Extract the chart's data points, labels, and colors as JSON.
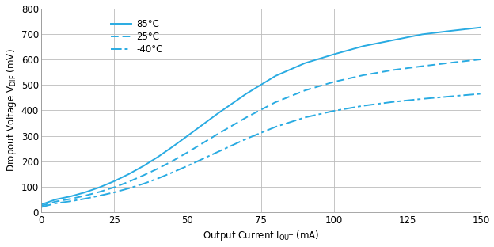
{
  "xlim": [
    0,
    150
  ],
  "ylim": [
    0,
    800
  ],
  "xticks": [
    0,
    25,
    50,
    75,
    100,
    125,
    150
  ],
  "yticks": [
    0,
    100,
    200,
    300,
    400,
    500,
    600,
    700,
    800
  ],
  "line_color": "#29ABE2",
  "grid_color": "#BBBBBB",
  "legend_labels": [
    "85°C",
    "25°C",
    "-40°C"
  ],
  "bg_color": "#FFFFFF",
  "curve_85": {
    "x": [
      0,
      5,
      10,
      15,
      20,
      25,
      30,
      35,
      40,
      45,
      50,
      60,
      70,
      80,
      90,
      100,
      110,
      120,
      130,
      140,
      150
    ],
    "y": [
      30,
      50,
      62,
      78,
      98,
      122,
      150,
      182,
      218,
      258,
      300,
      385,
      465,
      535,
      585,
      620,
      652,
      675,
      698,
      712,
      725
    ]
  },
  "curve_25": {
    "x": [
      0,
      5,
      10,
      15,
      20,
      25,
      30,
      35,
      40,
      45,
      50,
      60,
      70,
      80,
      90,
      100,
      110,
      120,
      130,
      140,
      150
    ],
    "y": [
      25,
      42,
      52,
      65,
      80,
      98,
      120,
      145,
      172,
      202,
      235,
      305,
      372,
      432,
      478,
      512,
      538,
      558,
      573,
      587,
      600
    ]
  },
  "curve_m40": {
    "x": [
      0,
      5,
      10,
      15,
      20,
      25,
      30,
      35,
      40,
      45,
      50,
      60,
      70,
      80,
      90,
      100,
      110,
      120,
      130,
      140,
      150
    ],
    "y": [
      20,
      35,
      43,
      53,
      65,
      78,
      94,
      112,
      133,
      157,
      182,
      235,
      288,
      335,
      372,
      398,
      418,
      433,
      445,
      455,
      465
    ]
  },
  "figsize": [
    6.24,
    3.12
  ],
  "dpi": 100
}
